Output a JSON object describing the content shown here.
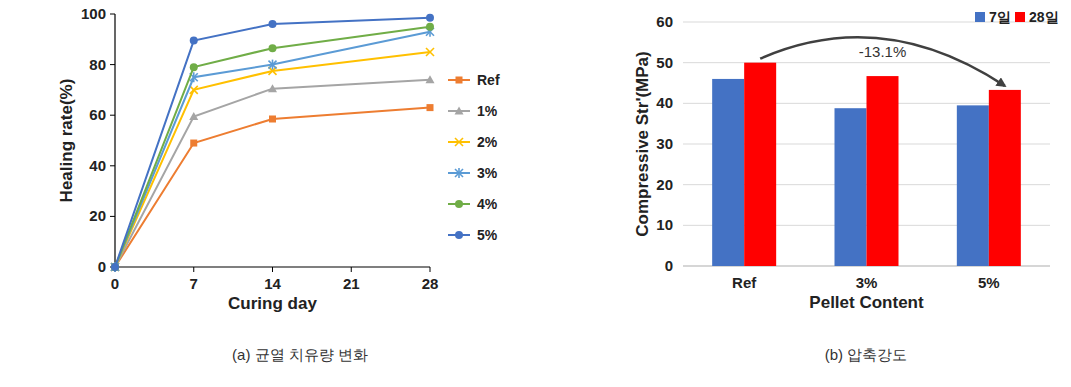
{
  "chart_data": [
    {
      "type": "line",
      "caption": "(a) 균열 치유량 변화",
      "x_label": "Curing day",
      "y_label": "Healing rate(%)",
      "x": [
        0,
        7,
        14,
        28
      ],
      "xlim": [
        0,
        28
      ],
      "xticks": [
        0,
        7,
        14,
        21,
        28
      ],
      "ylim": [
        0,
        100
      ],
      "yticks": [
        0,
        20,
        40,
        60,
        80,
        100
      ],
      "grid": false,
      "legend": "right",
      "series": [
        {
          "name": "Ref",
          "color": "#ed7d31",
          "marker": "square",
          "values": [
            0,
            49,
            58.5,
            63
          ]
        },
        {
          "name": "1%",
          "color": "#a5a5a5",
          "marker": "triangle",
          "values": [
            0,
            59.5,
            70.5,
            74
          ]
        },
        {
          "name": "2%",
          "color": "#ffc000",
          "marker": "x",
          "values": [
            0,
            70,
            77.5,
            85
          ]
        },
        {
          "name": "3%",
          "color": "#5b9bd5",
          "marker": "asterisk",
          "values": [
            0,
            75,
            80,
            93
          ]
        },
        {
          "name": "4%",
          "color": "#70ad47",
          "marker": "circle",
          "values": [
            0,
            79,
            86.5,
            95
          ]
        },
        {
          "name": "5%",
          "color": "#4472c4",
          "marker": "circle",
          "values": [
            0,
            89.5,
            96,
            98.5
          ]
        }
      ]
    },
    {
      "type": "bar",
      "caption": "(b) 압축강도",
      "x_label": "Pellet Content",
      "y_label": "Compressive Str'(MPa)",
      "categories": [
        "Ref",
        "3%",
        "5%"
      ],
      "ylim": [
        0,
        60
      ],
      "yticks": [
        0,
        10,
        20,
        30,
        40,
        50,
        60
      ],
      "grid": true,
      "legend": "top right",
      "series": [
        {
          "name": "7일",
          "color": "#4472c4",
          "values": [
            46,
            38.8,
            39.5
          ]
        },
        {
          "name": "28일",
          "color": "#ff0000",
          "values": [
            50,
            46.7,
            43.3
          ]
        }
      ],
      "annotations": [
        {
          "text": "-13.1%"
        }
      ]
    }
  ]
}
